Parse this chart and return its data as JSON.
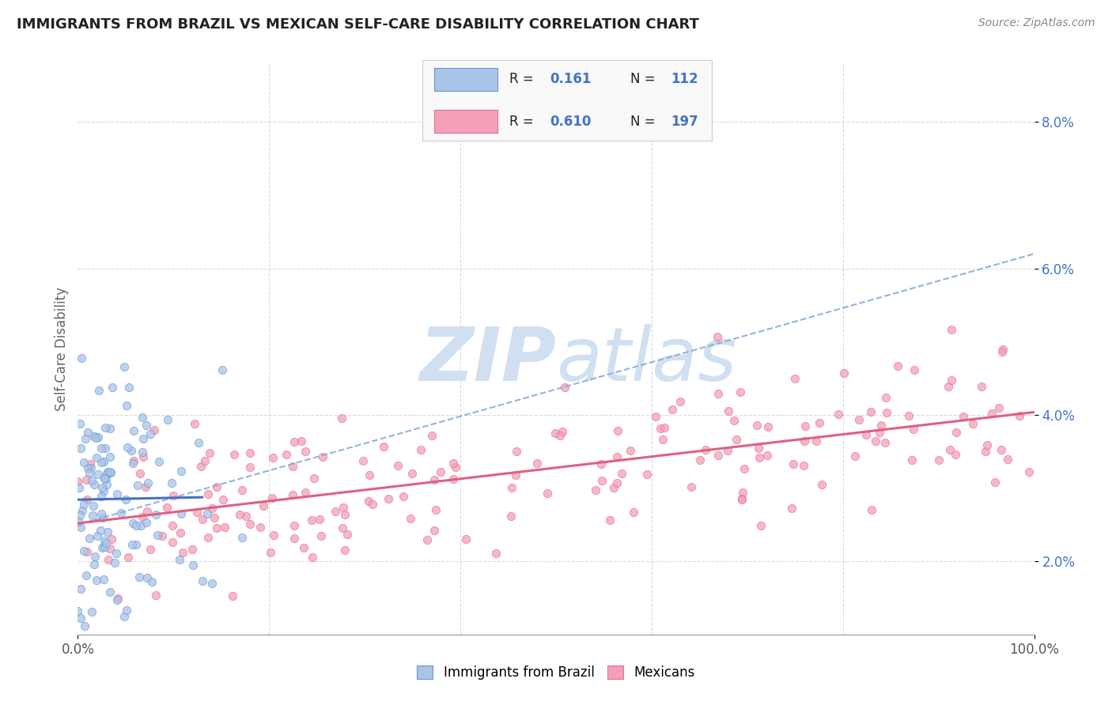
{
  "title": "IMMIGRANTS FROM BRAZIL VS MEXICAN SELF-CARE DISABILITY CORRELATION CHART",
  "source_text": "Source: ZipAtlas.com",
  "ylabel": "Self-Care Disability",
  "xlim": [
    0,
    100
  ],
  "ylim": [
    1.0,
    8.8
  ],
  "yticks": [
    2.0,
    4.0,
    6.0,
    8.0
  ],
  "xtick_left_label": "0.0%",
  "xtick_right_label": "100.0%",
  "brazil_R": 0.161,
  "brazil_N": 112,
  "mexico_R": 0.61,
  "mexico_N": 197,
  "brazil_color": "#aac4e8",
  "mexico_color": "#f4a0b8",
  "brazil_edge_color": "#6699cc",
  "mexico_edge_color": "#e07090",
  "brazil_line_color": "#4472c4",
  "mexico_line_color": "#e06080",
  "dash_line_color": "#88aadd",
  "background_color": "#ffffff",
  "watermark_color": "#ccddf0",
  "stat_label_color": "#4472c4",
  "ytick_color": "#4472c4",
  "ylabel_color": "#666666",
  "title_color": "#222222",
  "source_color": "#888888"
}
